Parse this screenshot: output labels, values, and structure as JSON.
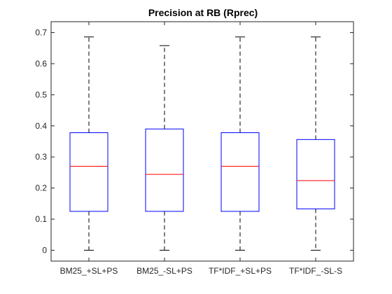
{
  "chart_data": {
    "type": "box",
    "title": "Precision at RB (Rprec)",
    "xlabel": "",
    "ylabel": "",
    "ylim": [
      -0.035,
      0.735
    ],
    "yticks": [
      0,
      0.1,
      0.2,
      0.3,
      0.4,
      0.5,
      0.6,
      0.7
    ],
    "ytick_labels": [
      "0",
      "0.1",
      "0.2",
      "0.3",
      "0.4",
      "0.5",
      "0.6",
      "0.7"
    ],
    "grid": false,
    "categories": [
      "BM25_+SL+PS",
      "BM25_-SL+PS",
      "TF*IDF_+SL+PS",
      "TF*IDF_-SL-S"
    ],
    "boxes": [
      {
        "min": 0.0,
        "q1": 0.125,
        "median": 0.27,
        "q3": 0.378,
        "max": 0.686
      },
      {
        "min": 0.0,
        "q1": 0.125,
        "median": 0.244,
        "q3": 0.39,
        "max": 0.658
      },
      {
        "min": 0.0,
        "q1": 0.125,
        "median": 0.27,
        "q3": 0.378,
        "max": 0.686
      },
      {
        "min": 0.0,
        "q1": 0.133,
        "median": 0.224,
        "q3": 0.356,
        "max": 0.686
      }
    ],
    "colors": {
      "box": "#0000ff",
      "median": "#ff0000",
      "whisker": "#000000",
      "axis": "#262626"
    }
  }
}
